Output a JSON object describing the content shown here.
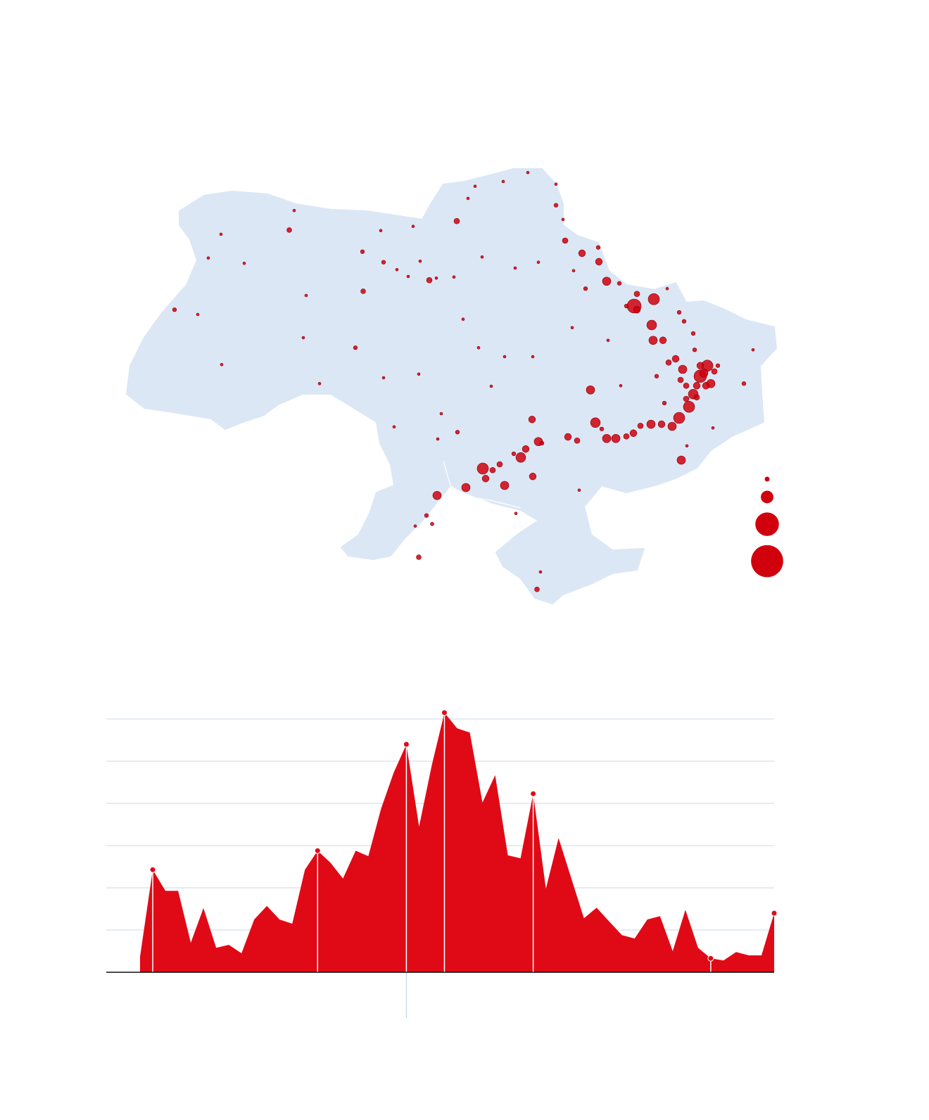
{
  "chart_data": [
    {
      "type": "bubble-map",
      "color": "#d0000d",
      "xlim": [
        22,
        40.5
      ],
      "ylim": [
        44,
        53
      ],
      "x": [
        36.46,
        37.02,
        36.96,
        37.0,
        37.28,
        35.68,
        35.46,
        34.98,
        35.22,
        35.36,
        37.8,
        38.02,
        37.74,
        37.54,
        38.14,
        38.34,
        38.54,
        38.64,
        37.84,
        37.64,
        36.44,
        35.94,
        35.68,
        36.94,
        37.24,
        33.56,
        33.74,
        33.24,
        33.38,
        32.16,
        32.78,
        31.68,
        30.86,
        32.24,
        32.44,
        32.64,
        33.58,
        34.58,
        34.84,
        31.42,
        26.66,
        30.64,
        28.76,
        29.34,
        28.54,
        23.4,
        24.72,
        24.74,
        24.36,
        25.38,
        24.06,
        26.8,
        27.14,
        27.06,
        27.52,
        29.34,
        30.34,
        29.64,
        30.98,
        31.44,
        30.34,
        30.72,
        30.56,
        30.24,
        33.7,
        33.8,
        32.78,
        33.58,
        32.4,
        32.04,
        31.6,
        32.14,
        33.08,
        33.74,
        32.74,
        33.44,
        34.24,
        34.24,
        34.44,
        34.5,
        34.74,
        35.08,
        34.7,
        35.72,
        36.08,
        36.24,
        36.54,
        36.04,
        37.4,
        37.74,
        37.88,
        38.14,
        38.18,
        38.84,
        39.58,
        39.84,
        38.7,
        37.96,
        37.32,
        37.44,
        36.64,
        36.24,
        34.9,
        33.1,
        30.88,
        29.72,
        30.04,
        30.84,
        31.34,
        30.38,
        28.74,
        29.26,
        30.18,
        31.74,
        31.94,
        35.44,
        37.94,
        38.24,
        38.44,
        38.74,
        37.78,
        37.1,
        37.94,
        35.54,
        33.04,
        33.84,
        38.34,
        38.5,
        38.24,
        36.54
      ],
      "y": [
        49.8,
        49.93,
        49.44,
        49.15,
        49.15,
        50.27,
        50.64,
        50.8,
        48.21,
        47.59,
        46.88,
        47.89,
        47.68,
        47.52,
        48.13,
        48.47,
        48.67,
        48.33,
        48.6,
        48.8,
        47.39,
        47.29,
        47.29,
        47.56,
        47.56,
        47.65,
        47.23,
        46.93,
        47.09,
        46.72,
        46.4,
        46.36,
        46.21,
        46.53,
        46.69,
        46.8,
        46.57,
        47.32,
        47.25,
        51.41,
        51.24,
        50.29,
        50.08,
        50.63,
        49.01,
        49.73,
        51.16,
        48.69,
        50.71,
        50.61,
        49.64,
        51.61,
        50.0,
        49.2,
        48.33,
        48.44,
        48.51,
        47.51,
        47.76,
        47.41,
        45.04,
        45.67,
        45.83,
        45.63,
        44.43,
        44.76,
        48.84,
        48.84,
        48.28,
        49.01,
        49.55,
        50.73,
        50.52,
        50.63,
        52.16,
        52.33,
        52.11,
        51.71,
        51.44,
        51.04,
        50.47,
        50.13,
        49.39,
        49.15,
        48.29,
        49.8,
        50.03,
        50.23,
        50.13,
        49.68,
        49.51,
        49.28,
        48.97,
        48.67,
        48.33,
        48.97,
        47.49,
        47.15,
        47.96,
        48.73,
        47.53,
        47.33,
        46.31,
        45.87,
        47.28,
        50.49,
        50.36,
        50.33,
        50.35,
        50.65,
        50.83,
        51.23,
        51.31,
        51.84,
        52.07,
        50.91,
        48.29,
        48.29,
        48.53,
        48.56,
        48.4,
        48.47,
        48.04,
        47.47,
        47.0,
        47.2,
        48.67,
        48.29,
        48.07,
        49.73
      ],
      "sizes": [
        25,
        16,
        12,
        9,
        6,
        9,
        6,
        6,
        9,
        12,
        9,
        16,
        16,
        9,
        12,
        20,
        16,
        9,
        9,
        6,
        6,
        9,
        9,
        9,
        6,
        6,
        9,
        12,
        6,
        16,
        9,
        9,
        9,
        6,
        4,
        4,
        6,
        6,
        4,
        4,
        3,
        4,
        3,
        2,
        2,
        2,
        1,
        1,
        1,
        1,
        1,
        1,
        1,
        1,
        1,
        1,
        1,
        1,
        1,
        2,
        3,
        1.5,
        2,
        1,
        3,
        1,
        1,
        1,
        1,
        1,
        1,
        1,
        1,
        1,
        1,
        1,
        1,
        2,
        1,
        4,
        1,
        2,
        1,
        1,
        1,
        2,
        4,
        2,
        1,
        2,
        2,
        2,
        2,
        2,
        2,
        1,
        1,
        1,
        2,
        4,
        4,
        4,
        1,
        1,
        1,
        1,
        1,
        1,
        1,
        1,
        2,
        1,
        1,
        1,
        1,
        2,
        4,
        6,
        9,
        4,
        4,
        2,
        4,
        2,
        2,
        2,
        6,
        6,
        4,
        6
      ],
      "size_legend": [
        3,
        20,
        70,
        130
      ]
    },
    {
      "type": "area",
      "color": "#e00a16",
      "values": [
        0.37,
        2.43,
        1.93,
        1.93,
        0.7,
        1.52,
        0.58,
        0.65,
        0.45,
        1.25,
        1.57,
        1.25,
        1.15,
        2.43,
        2.88,
        2.6,
        2.22,
        2.88,
        2.75,
        3.87,
        4.73,
        5.4,
        3.45,
        4.9,
        6.15,
        5.78,
        5.68,
        4.02,
        4.67,
        2.77,
        2.7,
        4.23,
        1.98,
        3.18,
        2.23,
        1.28,
        1.53,
        1.2,
        0.88,
        0.8,
        1.25,
        1.33,
        0.5,
        1.48,
        0.58,
        0.33,
        0.28,
        0.48,
        0.4,
        0.4,
        1.4
      ],
      "ylim": [
        0,
        6
      ],
      "yticks": [
        0,
        1,
        2,
        3,
        4,
        5,
        6
      ],
      "grid": true,
      "markers": [
        1,
        14,
        21,
        24,
        31,
        45,
        50
      ],
      "reference": 21
    }
  ]
}
